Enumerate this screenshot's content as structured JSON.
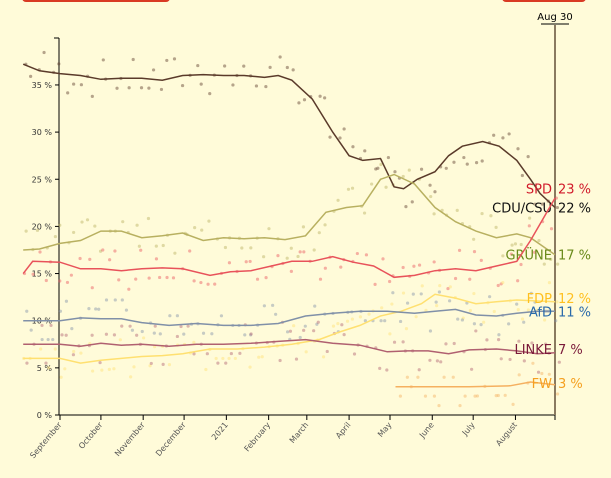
{
  "chart_data": {
    "type": "line",
    "title": "",
    "xlabel": "",
    "ylabel": "",
    "ylim": [
      0,
      40
    ],
    "y_ticks": [
      "0 %",
      "5 %",
      "10 %",
      "15 %",
      "20 %",
      "25 %",
      "30 %",
      "35 %"
    ],
    "x_ticks": [
      "September",
      "October",
      "November",
      "December",
      "2021",
      "February",
      "March",
      "April",
      "May",
      "June",
      "July",
      "August"
    ],
    "current_date_label": "Aug 30",
    "x_unit": "days since 2020-09-01",
    "series": [
      {
        "name": "CDU/CSU",
        "label": "23 %",
        "value_label": "22 %",
        "color": "#5a3a2a",
        "label_color": "#111111",
        "points": [
          [
            -27,
            37.2
          ],
          [
            -15,
            36.5
          ],
          [
            0,
            36.2
          ],
          [
            15,
            36
          ],
          [
            30,
            35.6
          ],
          [
            45,
            35.7
          ],
          [
            60,
            35.7
          ],
          [
            75,
            35.5
          ],
          [
            90,
            36
          ],
          [
            105,
            36.1
          ],
          [
            120,
            36
          ],
          [
            135,
            36
          ],
          [
            150,
            35.8
          ],
          [
            160,
            36
          ],
          [
            170,
            35.5
          ],
          [
            185,
            33.5
          ],
          [
            200,
            30
          ],
          [
            212,
            27.5
          ],
          [
            222,
            27
          ],
          [
            235,
            27.2
          ],
          [
            245,
            24.2
          ],
          [
            252,
            24
          ],
          [
            262,
            25
          ],
          [
            275,
            25.8
          ],
          [
            285,
            27.5
          ],
          [
            295,
            28.5
          ],
          [
            310,
            29
          ],
          [
            322,
            28.5
          ],
          [
            335,
            27
          ],
          [
            345,
            25
          ],
          [
            352,
            23.5
          ],
          [
            363,
            22
          ]
        ]
      },
      {
        "name": "GRÜNE",
        "value_label": "17 %",
        "color": "#b8b060",
        "label_color": "#6a8a1a",
        "points": [
          [
            -27,
            17.5
          ],
          [
            -15,
            17.6
          ],
          [
            0,
            18.2
          ],
          [
            15,
            18.5
          ],
          [
            30,
            19.5
          ],
          [
            45,
            19.5
          ],
          [
            60,
            18.8
          ],
          [
            75,
            19
          ],
          [
            90,
            19.3
          ],
          [
            105,
            18.5
          ],
          [
            120,
            18.8
          ],
          [
            135,
            18.7
          ],
          [
            150,
            18.8
          ],
          [
            165,
            18.6
          ],
          [
            180,
            19
          ],
          [
            195,
            21.5
          ],
          [
            210,
            22
          ],
          [
            222,
            22.2
          ],
          [
            235,
            25
          ],
          [
            245,
            25.5
          ],
          [
            260,
            24.5
          ],
          [
            275,
            22
          ],
          [
            290,
            20.5
          ],
          [
            305,
            19.5
          ],
          [
            320,
            18.8
          ],
          [
            335,
            19.2
          ],
          [
            345,
            18.8
          ],
          [
            363,
            17
          ]
        ]
      },
      {
        "name": "SPD",
        "value_label": "23 %",
        "color": "#e8525a",
        "label_color": "#d11a2a",
        "points": [
          [
            -27,
            15
          ],
          [
            -20,
            16.3
          ],
          [
            0,
            16.2
          ],
          [
            15,
            15.5
          ],
          [
            30,
            15.5
          ],
          [
            45,
            15.3
          ],
          [
            60,
            15.5
          ],
          [
            75,
            15.6
          ],
          [
            90,
            15.5
          ],
          [
            110,
            14.8
          ],
          [
            125,
            15.2
          ],
          [
            140,
            15.3
          ],
          [
            155,
            15.8
          ],
          [
            170,
            16.3
          ],
          [
            185,
            16.3
          ],
          [
            200,
            16.8
          ],
          [
            215,
            16.2
          ],
          [
            230,
            15.8
          ],
          [
            245,
            14.6
          ],
          [
            260,
            14.8
          ],
          [
            275,
            15.3
          ],
          [
            290,
            15.5
          ],
          [
            305,
            15.3
          ],
          [
            320,
            15.8
          ],
          [
            335,
            16.3
          ],
          [
            345,
            18.5
          ],
          [
            355,
            21
          ],
          [
            363,
            23
          ]
        ]
      },
      {
        "name": "FDP",
        "value_label": "12 %",
        "color": "#ffe070",
        "label_color": "#ffc020",
        "points": [
          [
            -27,
            6
          ],
          [
            0,
            6
          ],
          [
            15,
            5.5
          ],
          [
            30,
            5.8
          ],
          [
            45,
            6
          ],
          [
            60,
            6.2
          ],
          [
            75,
            6.3
          ],
          [
            90,
            6.5
          ],
          [
            110,
            7
          ],
          [
            130,
            7
          ],
          [
            150,
            7.2
          ],
          [
            170,
            7.5
          ],
          [
            190,
            8
          ],
          [
            205,
            8.8
          ],
          [
            220,
            9.5
          ],
          [
            235,
            10.5
          ],
          [
            250,
            11
          ],
          [
            265,
            11.8
          ],
          [
            275,
            12.8
          ],
          [
            290,
            12.4
          ],
          [
            305,
            11.8
          ],
          [
            320,
            12
          ],
          [
            335,
            12.2
          ],
          [
            363,
            12
          ]
        ]
      },
      {
        "name": "AfD",
        "value_label": "11 %",
        "color": "#8090a8",
        "label_color": "#2a6aaa",
        "points": [
          [
            -27,
            10
          ],
          [
            0,
            10
          ],
          [
            15,
            10.3
          ],
          [
            30,
            10.2
          ],
          [
            45,
            10.2
          ],
          [
            60,
            9.8
          ],
          [
            80,
            9.5
          ],
          [
            100,
            9.7
          ],
          [
            120,
            9.5
          ],
          [
            140,
            9.5
          ],
          [
            160,
            9.7
          ],
          [
            180,
            10.5
          ],
          [
            200,
            10.8
          ],
          [
            220,
            11
          ],
          [
            240,
            11
          ],
          [
            260,
            10.8
          ],
          [
            275,
            11
          ],
          [
            290,
            11.2
          ],
          [
            305,
            10.6
          ],
          [
            320,
            10.5
          ],
          [
            335,
            10.8
          ],
          [
            350,
            11
          ],
          [
            363,
            11
          ]
        ]
      },
      {
        "name": "LINKE",
        "value_label": "7 %",
        "color": "#b06070",
        "label_color": "#7a1a3a",
        "points": [
          [
            -27,
            7.5
          ],
          [
            0,
            7.5
          ],
          [
            15,
            7.3
          ],
          [
            30,
            7.6
          ],
          [
            45,
            7.4
          ],
          [
            60,
            7.5
          ],
          [
            80,
            7.3
          ],
          [
            100,
            7.5
          ],
          [
            120,
            7.5
          ],
          [
            140,
            7.6
          ],
          [
            160,
            7.8
          ],
          [
            180,
            8
          ],
          [
            200,
            7.6
          ],
          [
            220,
            7.4
          ],
          [
            240,
            6.7
          ],
          [
            255,
            6.8
          ],
          [
            270,
            6.8
          ],
          [
            285,
            6.5
          ],
          [
            300,
            6.9
          ],
          [
            320,
            7
          ],
          [
            335,
            6.8
          ],
          [
            350,
            6.5
          ],
          [
            363,
            6.6
          ]
        ]
      },
      {
        "name": "FW",
        "value_label": "3 %",
        "color": "#f5b060",
        "label_color": "#f5a020",
        "points": [
          [
            246,
            3
          ],
          [
            270,
            3
          ],
          [
            300,
            3
          ],
          [
            330,
            3.1
          ],
          [
            345,
            3.5
          ],
          [
            363,
            3.2
          ]
        ]
      }
    ]
  }
}
